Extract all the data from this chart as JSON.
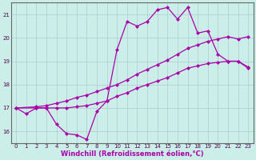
{
  "xlabel": "Windchill (Refroidissement éolien,°C)",
  "background_color": "#cceee8",
  "grid_color": "#aacccc",
  "line_color": "#aa00aa",
  "xlim": [
    -0.5,
    23.5
  ],
  "ylim": [
    15.5,
    21.5
  ],
  "xticks": [
    0,
    1,
    2,
    3,
    4,
    5,
    6,
    7,
    8,
    9,
    10,
    11,
    12,
    13,
    14,
    15,
    16,
    17,
    18,
    19,
    20,
    21,
    22,
    23
  ],
  "yticks": [
    16,
    17,
    18,
    19,
    20,
    21
  ],
  "line1_x": [
    0,
    1,
    2,
    3,
    4,
    5,
    6,
    7,
    8,
    9,
    10,
    11,
    12,
    13,
    14,
    15,
    16,
    17,
    18,
    19,
    20,
    21,
    22,
    23
  ],
  "line1_y": [
    17.0,
    16.75,
    17.0,
    17.0,
    16.3,
    15.9,
    15.85,
    15.65,
    16.85,
    17.3,
    19.5,
    20.7,
    20.5,
    20.7,
    21.2,
    21.3,
    20.8,
    21.3,
    20.2,
    20.3,
    19.3,
    19.0,
    19.0,
    18.7
  ],
  "line2_x": [
    0,
    2,
    3,
    4,
    5,
    6,
    7,
    8,
    9,
    10,
    11,
    12,
    13,
    14,
    15,
    16,
    17,
    18,
    19,
    20,
    21,
    22,
    23
  ],
  "line2_y": [
    17.0,
    17.05,
    17.1,
    17.2,
    17.3,
    17.45,
    17.55,
    17.7,
    17.85,
    18.0,
    18.2,
    18.45,
    18.65,
    18.85,
    19.05,
    19.3,
    19.55,
    19.7,
    19.85,
    19.95,
    20.05,
    19.95,
    20.05
  ],
  "line3_x": [
    0,
    2,
    3,
    4,
    5,
    6,
    7,
    8,
    9,
    10,
    11,
    12,
    13,
    14,
    15,
    16,
    17,
    18,
    19,
    20,
    21,
    22,
    23
  ],
  "line3_y": [
    17.0,
    17.0,
    17.0,
    17.0,
    17.0,
    17.05,
    17.1,
    17.2,
    17.3,
    17.5,
    17.65,
    17.85,
    18.0,
    18.15,
    18.3,
    18.5,
    18.7,
    18.8,
    18.9,
    18.95,
    19.0,
    19.0,
    18.75
  ],
  "marker": "D",
  "markersize": 2.0,
  "linewidth": 0.9,
  "tick_fontsize": 5.0,
  "xlabel_fontsize": 6.0
}
